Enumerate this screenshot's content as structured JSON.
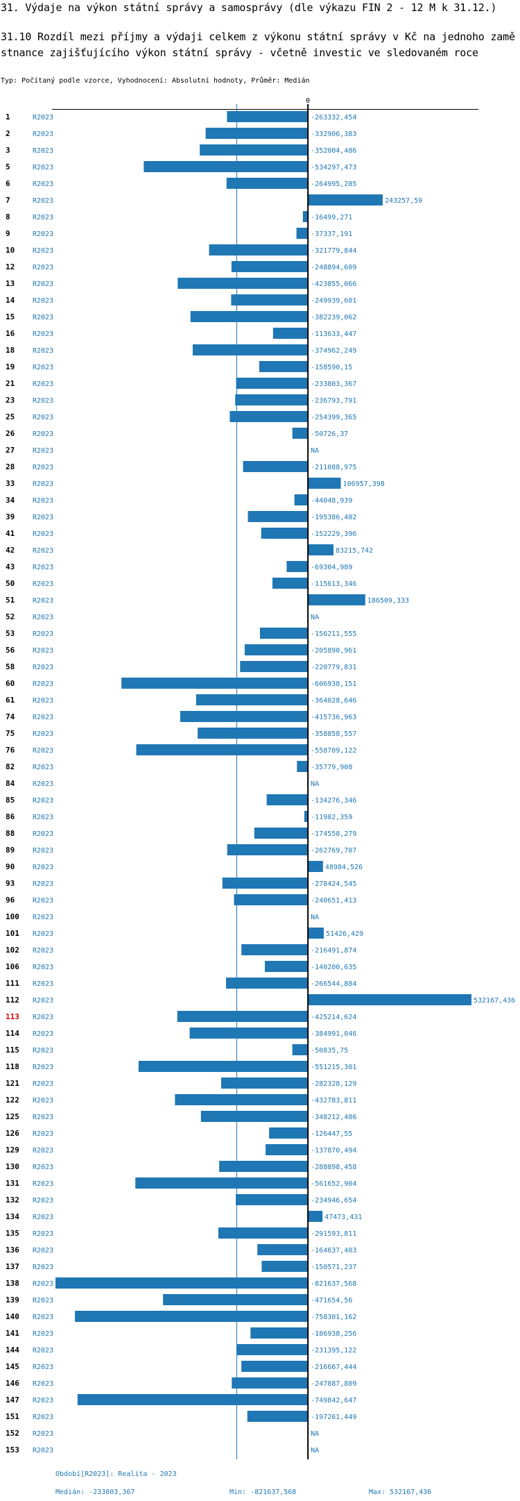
{
  "header": {
    "title": "31. Výdaje na výkon státní správy a samosprávy (dle výkazu FIN 2 - 12 M k 31.12.)",
    "subtitle": "31.10 Rozdíl mezi  příjmy a výdaji celkem z výkonu státní správy v Kč na jednoho zaměstnance zajišťujícího výkon státní správy - včetně investic ve sledovaném roce",
    "type_line": "Typ: Počítaný podle vzorce, Vyhodnocení: Absolutní hodnoty, Průměr: Medián"
  },
  "chart_data": {
    "type": "bar",
    "orientation": "horizontal",
    "title": "31.10 Rozdíl mezi  příjmy a výdaji celkem z výkonu státní správy v Kč na jednoho zaměstnance zajišťujícího výkon státní správy - včetně investic ve sledovaném roce",
    "xlabel": "",
    "ylabel": "",
    "zero_tick_label": "0",
    "period_label": "R2023",
    "highlighted_id": "113",
    "bar_color": "#1f77b4",
    "median": -233803.367,
    "xlim": [
      -821637.568,
      532167.436
    ],
    "rows": [
      {
        "id": "1",
        "period": "R2023",
        "value": -263332.454,
        "label": "-263332,454"
      },
      {
        "id": "2",
        "period": "R2023",
        "value": -332906.383,
        "label": "-332906,383"
      },
      {
        "id": "3",
        "period": "R2023",
        "value": -352004.486,
        "label": "-352004,486"
      },
      {
        "id": "5",
        "period": "R2023",
        "value": -534297.473,
        "label": "-534297,473"
      },
      {
        "id": "6",
        "period": "R2023",
        "value": -264995.285,
        "label": "-264995,285"
      },
      {
        "id": "7",
        "period": "R2023",
        "value": 243257.59,
        "label": "243257,59"
      },
      {
        "id": "8",
        "period": "R2023",
        "value": -16499.271,
        "label": "-16499,271"
      },
      {
        "id": "9",
        "period": "R2023",
        "value": -37337.191,
        "label": "-37337,191"
      },
      {
        "id": "10",
        "period": "R2023",
        "value": -321779.844,
        "label": "-321779,844"
      },
      {
        "id": "12",
        "period": "R2023",
        "value": -248894.609,
        "label": "-248894,609"
      },
      {
        "id": "13",
        "period": "R2023",
        "value": -423855.066,
        "label": "-423855,066"
      },
      {
        "id": "14",
        "period": "R2023",
        "value": -249939.601,
        "label": "-249939,601"
      },
      {
        "id": "15",
        "period": "R2023",
        "value": -382239.062,
        "label": "-382239,062"
      },
      {
        "id": "16",
        "period": "R2023",
        "value": -113633.447,
        "label": "-113633,447"
      },
      {
        "id": "18",
        "period": "R2023",
        "value": -374962.249,
        "label": "-374962,249"
      },
      {
        "id": "19",
        "period": "R2023",
        "value": -158590.15,
        "label": "-158590,15"
      },
      {
        "id": "21",
        "period": "R2023",
        "value": -233803.367,
        "label": "-233803,367"
      },
      {
        "id": "23",
        "period": "R2023",
        "value": -236793.791,
        "label": "-236793,791"
      },
      {
        "id": "25",
        "period": "R2023",
        "value": -254399.365,
        "label": "-254399,365"
      },
      {
        "id": "26",
        "period": "R2023",
        "value": -50726.37,
        "label": "-50726,37"
      },
      {
        "id": "27",
        "period": "R2023",
        "value": null,
        "label": "NA"
      },
      {
        "id": "28",
        "period": "R2023",
        "value": -211088.975,
        "label": "-211088,975"
      },
      {
        "id": "33",
        "period": "R2023",
        "value": 106957.398,
        "label": "106957,398"
      },
      {
        "id": "34",
        "period": "R2023",
        "value": -44048.939,
        "label": "-44048,939"
      },
      {
        "id": "39",
        "period": "R2023",
        "value": -195386.482,
        "label": "-195386,482"
      },
      {
        "id": "41",
        "period": "R2023",
        "value": -152229.396,
        "label": "-152229,396"
      },
      {
        "id": "42",
        "period": "R2023",
        "value": 83215.742,
        "label": "83215,742"
      },
      {
        "id": "43",
        "period": "R2023",
        "value": -69304.989,
        "label": "-69304,989"
      },
      {
        "id": "50",
        "period": "R2023",
        "value": -115613.346,
        "label": "-115613,346"
      },
      {
        "id": "51",
        "period": "R2023",
        "value": 186509.333,
        "label": "186509,333"
      },
      {
        "id": "52",
        "period": "R2023",
        "value": null,
        "label": "NA"
      },
      {
        "id": "53",
        "period": "R2023",
        "value": -156211.555,
        "label": "-156211,555"
      },
      {
        "id": "56",
        "period": "R2023",
        "value": -205890.961,
        "label": "-205890,961"
      },
      {
        "id": "58",
        "period": "R2023",
        "value": -220779.831,
        "label": "-220779,831"
      },
      {
        "id": "60",
        "period": "R2023",
        "value": -606938.151,
        "label": "-606938,151"
      },
      {
        "id": "61",
        "period": "R2023",
        "value": -364028.646,
        "label": "-364028,646"
      },
      {
        "id": "74",
        "period": "R2023",
        "value": -415736.963,
        "label": "-415736,963"
      },
      {
        "id": "75",
        "period": "R2023",
        "value": -358858.557,
        "label": "-358858,557"
      },
      {
        "id": "76",
        "period": "R2023",
        "value": -558709.122,
        "label": "-558709,122"
      },
      {
        "id": "82",
        "period": "R2023",
        "value": -35779.908,
        "label": "-35779,908"
      },
      {
        "id": "84",
        "period": "R2023",
        "value": null,
        "label": "NA"
      },
      {
        "id": "85",
        "period": "R2023",
        "value": -134276.346,
        "label": "-134276,346"
      },
      {
        "id": "86",
        "period": "R2023",
        "value": -11982.359,
        "label": "-11982,359"
      },
      {
        "id": "88",
        "period": "R2023",
        "value": -174558.279,
        "label": "-174558,279"
      },
      {
        "id": "89",
        "period": "R2023",
        "value": -262769.707,
        "label": "-262769,707"
      },
      {
        "id": "90",
        "period": "R2023",
        "value": 48984.526,
        "label": "48984,526"
      },
      {
        "id": "93",
        "period": "R2023",
        "value": -278424.545,
        "label": "-278424,545"
      },
      {
        "id": "96",
        "period": "R2023",
        "value": -240651.413,
        "label": "-240651,413"
      },
      {
        "id": "100",
        "period": "R2023",
        "value": null,
        "label": "NA"
      },
      {
        "id": "101",
        "period": "R2023",
        "value": 51426.429,
        "label": "51426,429"
      },
      {
        "id": "102",
        "period": "R2023",
        "value": -216491.874,
        "label": "-216491,874"
      },
      {
        "id": "106",
        "period": "R2023",
        "value": -140200.635,
        "label": "-140200,635"
      },
      {
        "id": "111",
        "period": "R2023",
        "value": -266544.884,
        "label": "-266544,884"
      },
      {
        "id": "112",
        "period": "R2023",
        "value": 532167.436,
        "label": "532167,436"
      },
      {
        "id": "113",
        "period": "R2023",
        "value": -425214.624,
        "label": "-425214,624"
      },
      {
        "id": "114",
        "period": "R2023",
        "value": -384991.046,
        "label": "-384991,046"
      },
      {
        "id": "115",
        "period": "R2023",
        "value": -50835.75,
        "label": "-50835,75"
      },
      {
        "id": "118",
        "period": "R2023",
        "value": -551215.301,
        "label": "-551215,301"
      },
      {
        "id": "121",
        "period": "R2023",
        "value": -282328.129,
        "label": "-282328,129"
      },
      {
        "id": "122",
        "period": "R2023",
        "value": -432783.811,
        "label": "-432783,811"
      },
      {
        "id": "125",
        "period": "R2023",
        "value": -348212.486,
        "label": "-348212,486"
      },
      {
        "id": "126",
        "period": "R2023",
        "value": -126447.55,
        "label": "-126447,55"
      },
      {
        "id": "129",
        "period": "R2023",
        "value": -137870.494,
        "label": "-137870,494"
      },
      {
        "id": "130",
        "period": "R2023",
        "value": -288898.458,
        "label": "-288898,458"
      },
      {
        "id": "131",
        "period": "R2023",
        "value": -561652.904,
        "label": "-561652,904"
      },
      {
        "id": "132",
        "period": "R2023",
        "value": -234946.654,
        "label": "-234946,654"
      },
      {
        "id": "134",
        "period": "R2023",
        "value": 47473.431,
        "label": "47473,431"
      },
      {
        "id": "135",
        "period": "R2023",
        "value": -291593.811,
        "label": "-291593,811"
      },
      {
        "id": "136",
        "period": "R2023",
        "value": -164637.403,
        "label": "-164637,403"
      },
      {
        "id": "137",
        "period": "R2023",
        "value": -150571.237,
        "label": "-150571,237"
      },
      {
        "id": "138",
        "period": "R2023",
        "value": -821637.568,
        "label": "-821637,568"
      },
      {
        "id": "139",
        "period": "R2023",
        "value": -471654.56,
        "label": "-471654,56"
      },
      {
        "id": "140",
        "period": "R2023",
        "value": -758301.162,
        "label": "-758301,162"
      },
      {
        "id": "141",
        "period": "R2023",
        "value": -186938.256,
        "label": "-186938,256"
      },
      {
        "id": "144",
        "period": "R2023",
        "value": -231395.122,
        "label": "-231395,122"
      },
      {
        "id": "145",
        "period": "R2023",
        "value": -216667.444,
        "label": "-216667,444"
      },
      {
        "id": "146",
        "period": "R2023",
        "value": -247887.809,
        "label": "-247887,809"
      },
      {
        "id": "147",
        "period": "R2023",
        "value": -749842.647,
        "label": "-749842,647"
      },
      {
        "id": "151",
        "period": "R2023",
        "value": -197261.449,
        "label": "-197261,449"
      },
      {
        "id": "152",
        "period": "R2023",
        "value": null,
        "label": "NA"
      },
      {
        "id": "153",
        "period": "R2023",
        "value": null,
        "label": "NA"
      }
    ]
  },
  "footer": {
    "period_note": "Období[R2023]: Realita - 2023",
    "median_text": "Medián: -233803,367",
    "min_text": "Min: -821637,568",
    "max_text": "Max: 532167,436"
  }
}
